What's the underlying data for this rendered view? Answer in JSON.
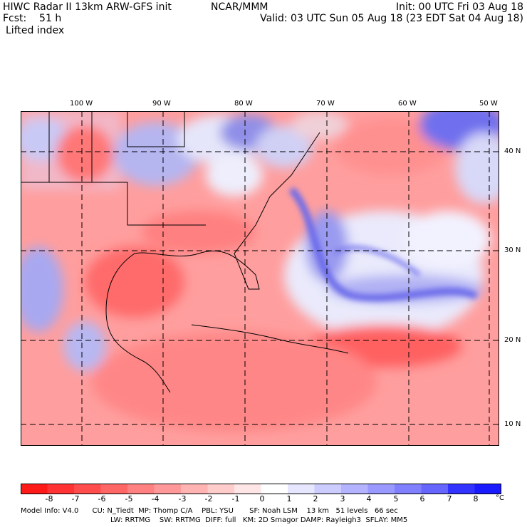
{
  "header": {
    "title_left": "HIWC Radar II 13km ARW-GFS init",
    "org": "NCAR/MMM",
    "init": "Init: 00 UTC Fri 03 Aug 18",
    "fcst": "Fcst:    51 h",
    "valid": "Valid: 03 UTC Sun 05 Aug 18 (23 EDT Sat 04 Aug 18)",
    "field": "Lifted index"
  },
  "axes": {
    "lon_labels": [
      "100 W",
      "90 W",
      "80 W",
      "70 W",
      "60 W",
      "50 W"
    ],
    "lat_labels": [
      "40 N",
      "30 N",
      "20 N",
      "10 N"
    ]
  },
  "colorbar": {
    "labels": [
      "-8",
      "-7",
      "-6",
      "-5",
      "-4",
      "-3",
      "-2",
      "-1",
      "0",
      "1",
      "2",
      "3",
      "4",
      "5",
      "6",
      "7",
      "8"
    ],
    "unit": "°C",
    "colors": [
      "#ff1a1a",
      "#ff3333",
      "#ff4d4d",
      "#ff6666",
      "#ff8080",
      "#ff9999",
      "#ffb3b3",
      "#ffcccc",
      "#ffe6e6",
      "#ffffff",
      "#e6e6ff",
      "#ccccff",
      "#b3b3ff",
      "#9999ff",
      "#8080ff",
      "#6666ff",
      "#3333ff",
      "#1a1aff"
    ]
  },
  "footer": {
    "line1": "Model Info: V4.0      CU: N_Tiedt  MP: Thomp C/A    PBL: YSU       SF: Noah LSM    13 km   51 levels   66 sec",
    "line2": "LW: RRTMG    SW: RRTMG  DIFF: full   KM: 2D Smagor DAMP: Rayleigh3  SFLAY: MM5"
  }
}
